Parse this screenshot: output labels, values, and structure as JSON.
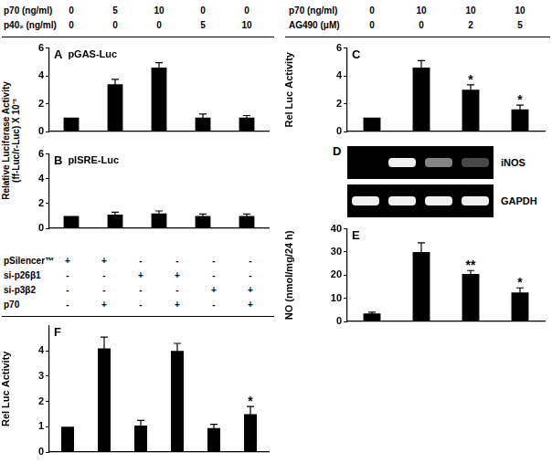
{
  "chart_data": [
    {
      "panel": "A",
      "type": "bar",
      "title": "pGAS-Luc",
      "y_label": [
        "Relative Luciferase Activity",
        "(ff-Luc/r-Luc) X 10⁻³"
      ],
      "conditions": [
        {
          "label": "p70 (ng/ml)",
          "values": [
            0,
            5,
            10,
            0,
            0
          ]
        },
        {
          "label": "p40₂ (ng/ml)",
          "values": [
            0,
            0,
            0,
            5,
            10
          ]
        }
      ],
      "values": [
        1,
        3.4,
        4.6,
        1.0,
        1.0
      ],
      "errors": [
        0,
        0.35,
        0.35,
        0.25,
        0.15
      ],
      "color": "#000000",
      "ylim": [
        0,
        6
      ],
      "yticks": [
        0,
        2,
        4,
        6
      ],
      "grid": false,
      "tick_labels": "y"
    },
    {
      "panel": "B",
      "type": "bar",
      "title": "pISRE-Luc",
      "values": [
        1,
        1.1,
        1.2,
        1.0,
        1.0
      ],
      "errors": [
        0,
        0.2,
        0.2,
        0.15,
        0.15
      ],
      "color": "#000000",
      "ylim": [
        0,
        6
      ],
      "yticks": [
        0,
        2,
        4,
        6
      ],
      "grid": false,
      "tick_labels": "y"
    },
    {
      "panel": "C",
      "type": "bar",
      "y_label": "Rel Luc Activity",
      "conditions": [
        {
          "label": "p70 (ng/ml)",
          "values": [
            0,
            10,
            10,
            10
          ]
        },
        {
          "label": "AG490 (μM)",
          "values": [
            0,
            0,
            2,
            5
          ]
        }
      ],
      "values": [
        1,
        4.6,
        3.0,
        1.6
      ],
      "errors": [
        0,
        0.5,
        0.35,
        0.3
      ],
      "significance": [
        null,
        null,
        "*",
        "*"
      ],
      "color": "#000000",
      "ylim": [
        0,
        6
      ],
      "yticks": [
        0,
        2,
        4,
        6
      ],
      "grid": false,
      "tick_labels": "y"
    },
    {
      "panel": "E",
      "type": "bar",
      "y_label": "NO (nmol/mg/24 h)",
      "values": [
        3.5,
        30,
        20.5,
        12.5
      ],
      "errors": [
        0.5,
        4,
        1.5,
        2
      ],
      "significance": [
        null,
        null,
        "**",
        "*"
      ],
      "color": "#000000",
      "ylim": [
        0,
        40
      ],
      "yticks": [
        0,
        10,
        20,
        30,
        40
      ],
      "grid": false,
      "tick_labels": "y"
    },
    {
      "panel": "F",
      "type": "bar",
      "y_label": "Rel Luc Activity",
      "conditions": [
        {
          "label": "pSilencer™",
          "values": [
            "+",
            "+",
            "-",
            "-",
            "-",
            "-"
          ]
        },
        {
          "label": "si-p26β1",
          "values": [
            "-",
            "-",
            "+",
            "+",
            "-",
            "-"
          ]
        },
        {
          "label": "si-p3β2",
          "values": [
            "-",
            "-",
            "-",
            "-",
            "+",
            "+"
          ]
        },
        {
          "label": "p70",
          "values": [
            "-",
            "+",
            "-",
            "+",
            "-",
            "+"
          ]
        }
      ],
      "values": [
        1,
        4.1,
        1.05,
        4.0,
        0.95,
        1.5
      ],
      "errors": [
        0,
        0.45,
        0.2,
        0.3,
        0.15,
        0.3
      ],
      "significance": [
        null,
        null,
        null,
        null,
        null,
        "*"
      ],
      "color": "#000000",
      "ylim": [
        0,
        5
      ],
      "yticks": [
        0,
        1,
        2,
        3,
        4
      ],
      "grid": false,
      "tick_labels": "y"
    }
  ],
  "gel": {
    "panel": "D",
    "bands": [
      {
        "label": "iNOS",
        "intensity": [
          0,
          1,
          0.55,
          0.3
        ]
      },
      {
        "label": "GAPDH",
        "intensity": [
          1,
          1,
          1,
          1
        ]
      }
    ]
  }
}
